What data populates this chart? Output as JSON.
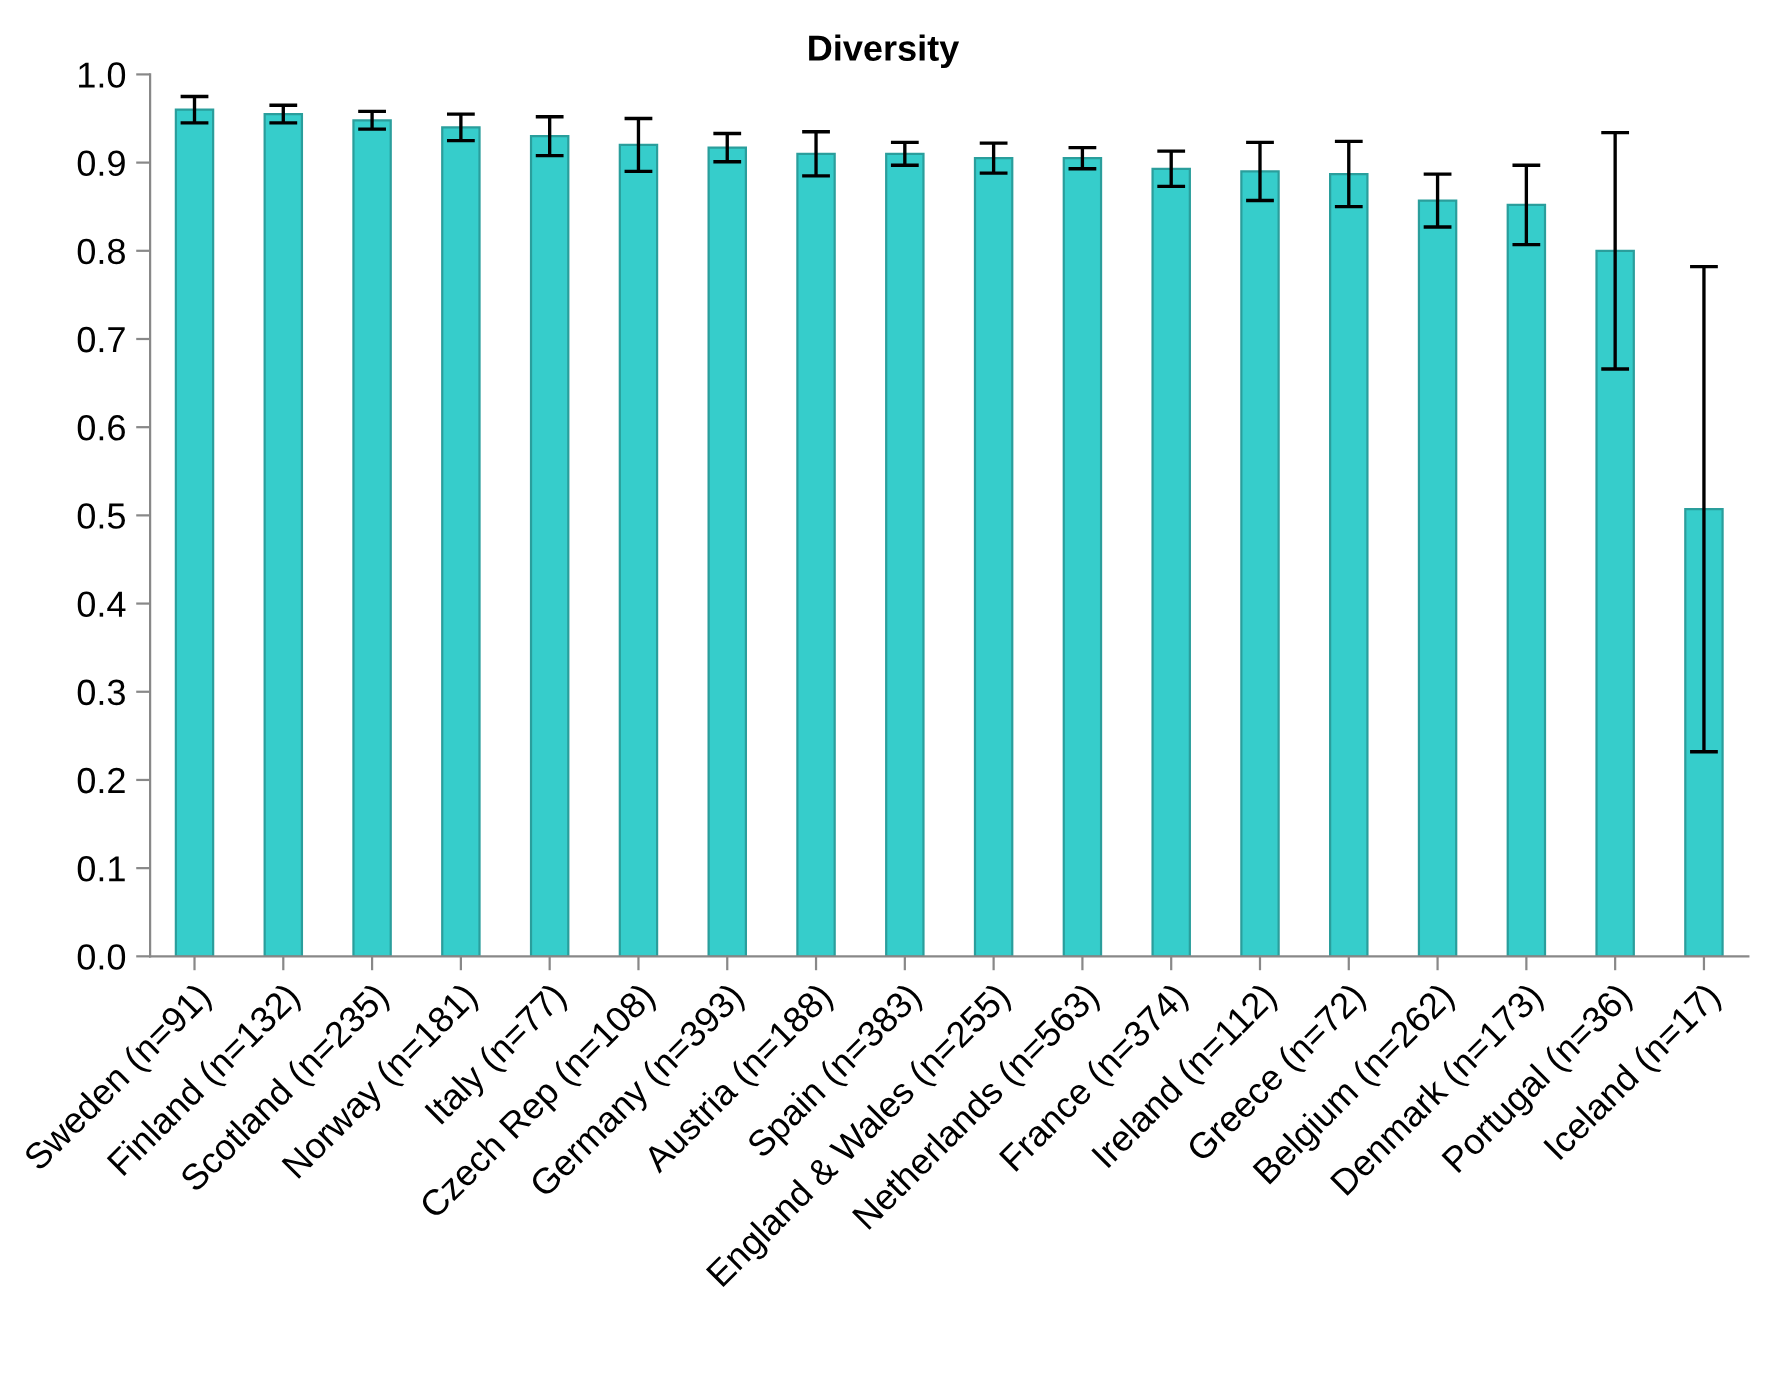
{
  "chart_data": {
    "type": "bar",
    "title": "Diversity",
    "categories": [
      "Sweden (n=91)",
      "Finland (n=132)",
      "Scotland (n=235)",
      "Norway (n=181)",
      "Italy (n=77)",
      "Czech Rep (n=108)",
      "Germany (n=393)",
      "Austria (n=188)",
      "Spain (n=383)",
      "England & Wales (n=255)",
      "Netherlands (n=563)",
      "France (n=374)",
      "Ireland (n=112)",
      "Greece (n=72)",
      "Belgium (n=262)",
      "Denmark (n=173)",
      "Portugal (n=36)",
      "Iceland (n=17)"
    ],
    "values": [
      0.96,
      0.955,
      0.948,
      0.94,
      0.93,
      0.92,
      0.917,
      0.91,
      0.91,
      0.905,
      0.905,
      0.893,
      0.89,
      0.887,
      0.857,
      0.852,
      0.8,
      0.507
    ],
    "errors": [
      0.015,
      0.01,
      0.01,
      0.015,
      0.022,
      0.03,
      0.016,
      0.025,
      0.013,
      0.017,
      0.012,
      0.02,
      0.033,
      0.037,
      0.03,
      0.045,
      0.134,
      0.275
    ],
    "color": "#36cdcb",
    "ylim": [
      0,
      1.0
    ],
    "yticks": [
      {
        "value": 0,
        "label": "0.0"
      },
      {
        "value": 0.1,
        "label": "0.1"
      },
      {
        "value": 0.2,
        "label": "0.2"
      },
      {
        "value": 0.3,
        "label": "0.3"
      },
      {
        "value": 0.4,
        "label": "0.4"
      },
      {
        "value": 0.5,
        "label": "0.5"
      },
      {
        "value": 0.6,
        "label": "0.6"
      },
      {
        "value": 0.7,
        "label": "0.7"
      },
      {
        "value": 0.8,
        "label": "0.8"
      },
      {
        "value": 0.9,
        "label": "0.9"
      },
      {
        "value": 1.0,
        "label": "1.0"
      }
    ],
    "grid": false
  }
}
